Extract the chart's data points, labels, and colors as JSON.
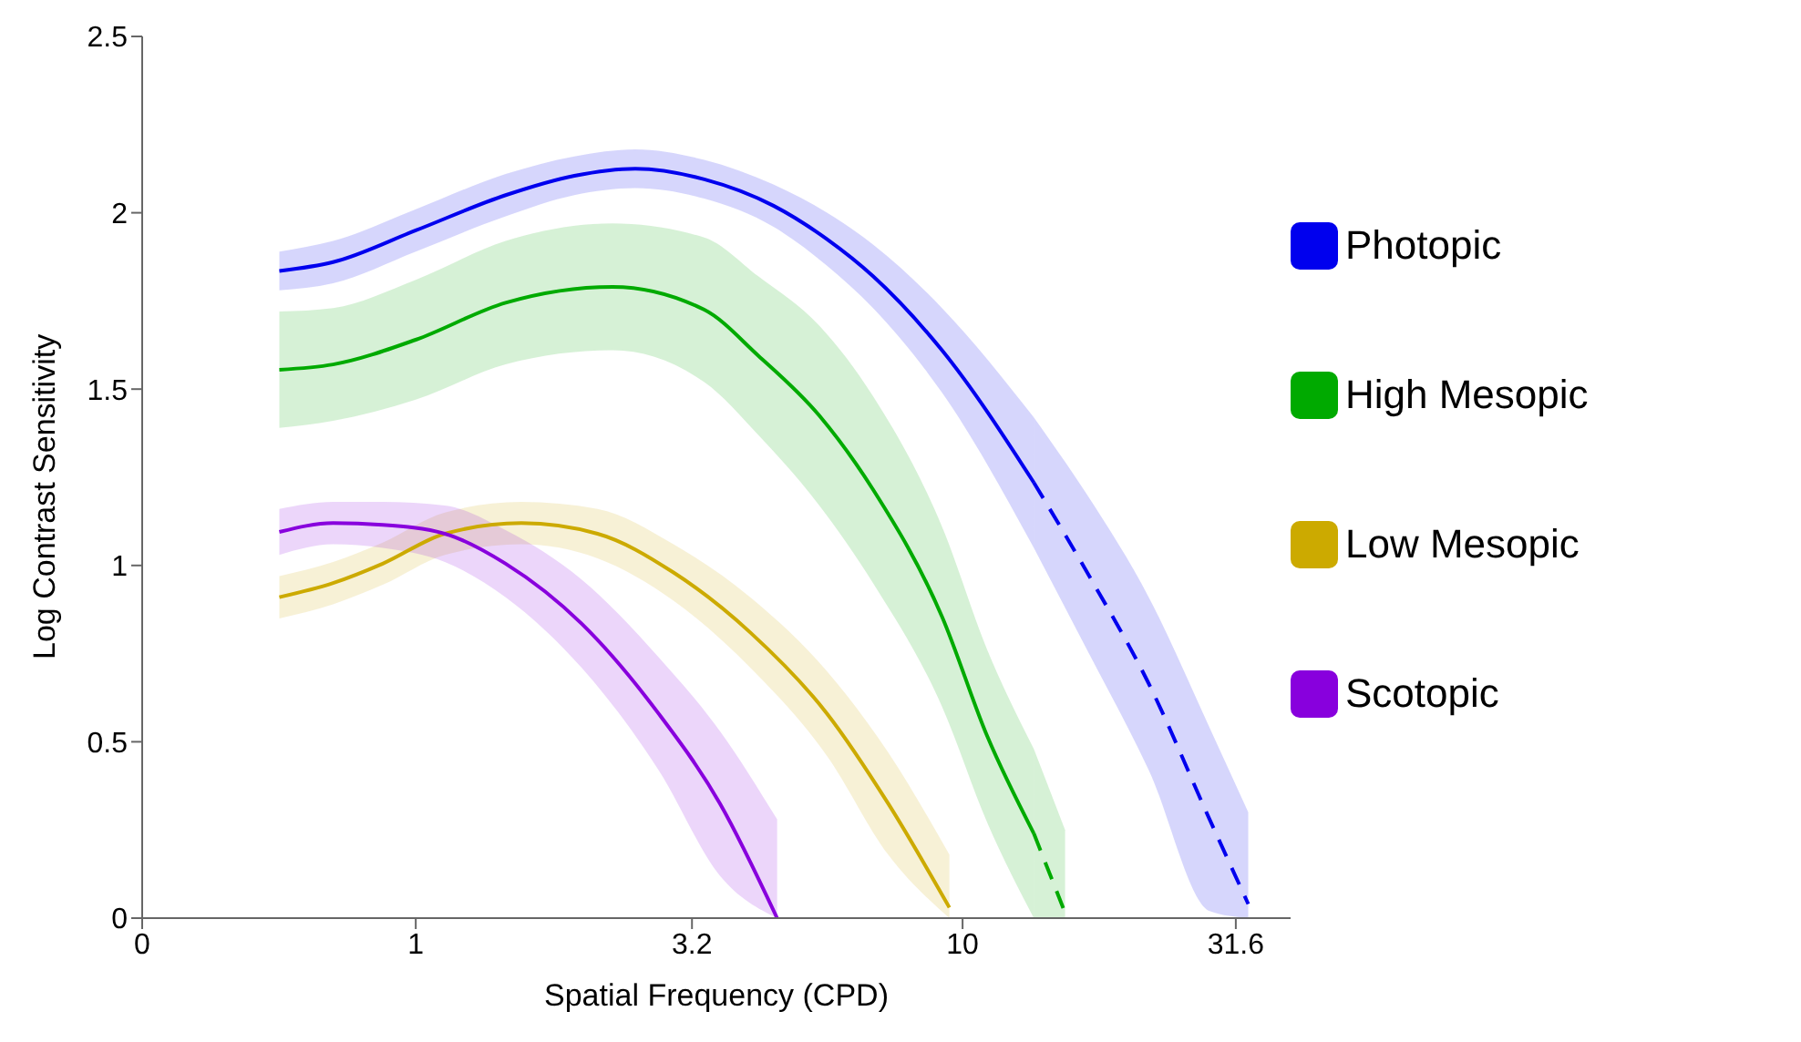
{
  "chart_data": {
    "type": "line",
    "xlabel": "Spatial Frequency (CPD)",
    "ylabel": "Log Contrast Sensitivity",
    "log": "x",
    "xlim": [
      0.316,
      39.8
    ],
    "xticks": [
      {
        "value": 0.316,
        "label": "0"
      },
      1,
      3.2,
      10,
      31.6
    ],
    "ylim": [
      0,
      2.5
    ],
    "yticks": [
      0,
      0.5,
      1,
      1.5,
      2,
      2.5
    ],
    "legend": "right",
    "marker": "none",
    "series": [
      {
        "name": "Photopic",
        "color": "#0000ee",
        "line_style": "solid",
        "x": [
          0.563,
          0.706,
          1,
          1.46,
          1.95,
          2.52,
          3.37,
          4.51,
          5.65,
          6.86,
          9.17,
          13.5
        ],
        "values": [
          1.835,
          1.86,
          1.95,
          2.05,
          2.105,
          2.125,
          2.095,
          2.02,
          1.925,
          1.82,
          1.61,
          1.235
        ],
        "lower": [
          1.78,
          1.8,
          1.89,
          1.99,
          2.05,
          2.07,
          2.04,
          1.96,
          1.85,
          1.73,
          1.49,
          1.05
        ],
        "upper": [
          1.89,
          1.92,
          2.01,
          2.11,
          2.16,
          2.18,
          2.15,
          2.08,
          2.0,
          1.91,
          1.73,
          1.42
        ]
      },
      {
        "color": "#0000ee",
        "line_style": "dashed",
        "x": [
          13.5,
          16.9,
          21.9,
          28.3,
          33.3
        ],
        "values": [
          1.235,
          0.98,
          0.665,
          0.28,
          0.04
        ],
        "lower": [
          1.05,
          0.76,
          0.42,
          0.02,
          0
        ],
        "upper": [
          1.42,
          1.2,
          0.91,
          0.54,
          0.3
        ]
      },
      {
        "name": "High Mesopic",
        "color": "#00aa00",
        "line_style": "solid",
        "x": [
          0.563,
          0.706,
          1,
          1.46,
          2.29,
          3.37,
          4.23,
          5.47,
          6.86,
          9.17,
          11.1,
          13.5
        ],
        "values": [
          1.555,
          1.57,
          1.64,
          1.745,
          1.79,
          1.725,
          1.595,
          1.425,
          1.215,
          0.855,
          0.515,
          0.24
        ],
        "lower": [
          1.39,
          1.41,
          1.47,
          1.57,
          1.61,
          1.52,
          1.37,
          1.17,
          0.95,
          0.6,
          0.27,
          0
        ],
        "upper": [
          1.72,
          1.73,
          1.81,
          1.92,
          1.97,
          1.93,
          1.82,
          1.68,
          1.48,
          1.11,
          0.76,
          0.48
        ]
      },
      {
        "color": "#00aa00",
        "line_style": "dashed",
        "x": [
          13.5,
          15.4
        ],
        "values": [
          0.24,
          0.015
        ],
        "lower": [
          0,
          0
        ],
        "upper": [
          0.48,
          0.25
        ]
      },
      {
        "name": "Low Mesopic",
        "color": "#ccaa00",
        "line_style": "solid",
        "x": [
          0.563,
          0.706,
          0.87,
          1.13,
          1.56,
          2.15,
          2.96,
          4.09,
          5.65,
          7.31,
          9.46
        ],
        "values": [
          0.91,
          0.95,
          1.005,
          1.09,
          1.12,
          1.09,
          0.98,
          0.81,
          0.58,
          0.325,
          0.03
        ],
        "lower": [
          0.85,
          0.89,
          0.945,
          1.03,
          1.06,
          1.02,
          0.9,
          0.71,
          0.46,
          0.18,
          0
        ],
        "upper": [
          0.97,
          1.01,
          1.065,
          1.15,
          1.18,
          1.16,
          1.06,
          0.91,
          0.7,
          0.47,
          0.18
        ]
      },
      {
        "name": "Scotopic",
        "color": "#8800dd",
        "line_style": "solid",
        "x": [
          0.563,
          0.706,
          0.87,
          1.13,
          1.46,
          2.01,
          2.78,
          3.6,
          4.58
        ],
        "values": [
          1.095,
          1.12,
          1.115,
          1.09,
          1.005,
          0.835,
          0.58,
          0.325,
          0
        ],
        "lower": [
          1.03,
          1.06,
          1.05,
          1.01,
          0.91,
          0.71,
          0.42,
          0.12,
          0
        ],
        "upper": [
          1.16,
          1.18,
          1.18,
          1.17,
          1.1,
          0.96,
          0.74,
          0.53,
          0.28
        ]
      }
    ]
  }
}
